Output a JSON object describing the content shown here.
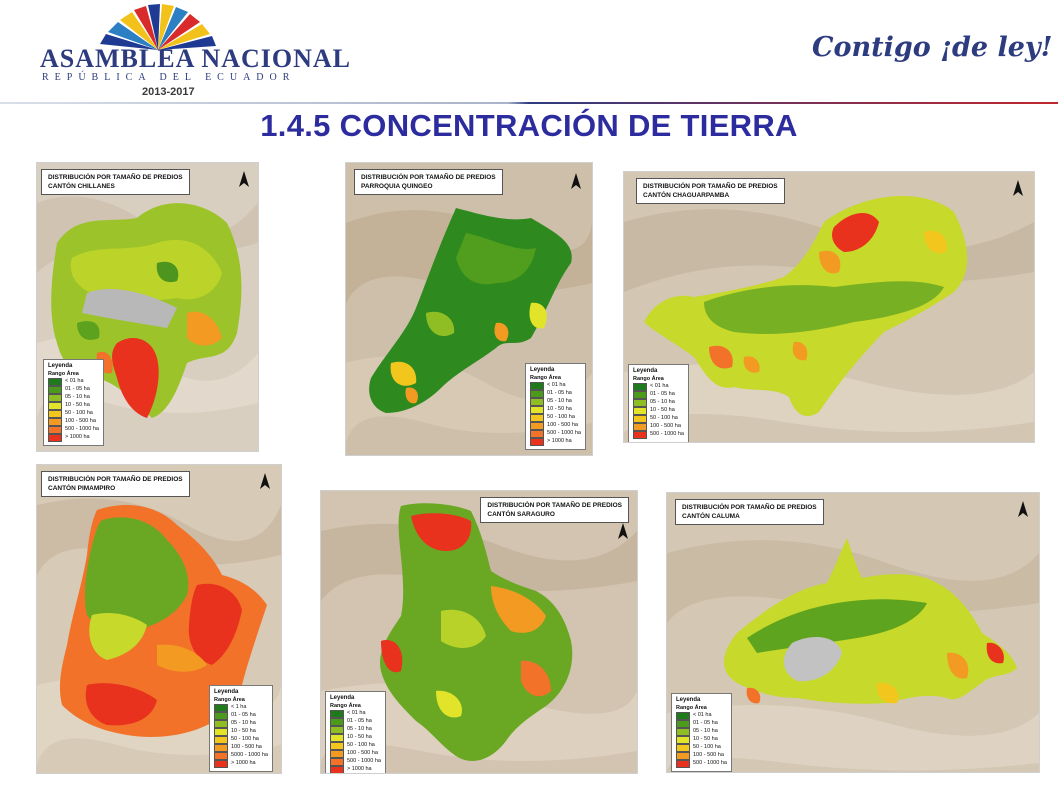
{
  "header": {
    "brand": "ASAMBLEA NACIONAL",
    "brand_sub": "REPÚBLICA DEL ECUADOR",
    "period": "2013-2017",
    "slogan": "Contigo ¡de ley!"
  },
  "title": "1.4.5 CONCENTRACIÓN DE TIERRA",
  "colors": {
    "c1": "#1e7a1a",
    "c2": "#4c9a1c",
    "c3": "#8fbe24",
    "c4": "#e2e42a",
    "c5": "#f3c61e",
    "c6": "#f39a22",
    "c7": "#f2722a",
    "c8": "#e8321e"
  },
  "maps": [
    {
      "title1": "DISTRIBUCIÓN POR TAMAÑO DE PREDIOS",
      "title2": "CANTÓN CHILLANES",
      "legend_title": "Leyenda",
      "legend_sub": "Rango Área",
      "legend": [
        "< 01 ha",
        "01 - 05 ha",
        "05 - 10 ha",
        "10 - 50 ha",
        "50 - 100 ha",
        "100 - 500 ha",
        "500 - 1000 ha",
        "> 1000 ha"
      ]
    },
    {
      "title1": "DISTRIBUCIÓN POR TAMAÑO DE PREDIOS",
      "title2": "PARROQUIA QUINGEO",
      "legend_title": "Leyenda",
      "legend_sub": "Rango Área",
      "legend": [
        "< 01 ha",
        "01 - 05 ha",
        "05 - 10 ha",
        "10 - 50 ha",
        "50 - 100 ha",
        "100 - 500 ha",
        "500 - 1000 ha",
        "> 1000 ha"
      ]
    },
    {
      "title1": "DISTRIBUCIÓN POR TAMAÑO DE PREDIOS",
      "title2": "CANTÓN CHAGUARPAMBA",
      "legend_title": "Leyenda",
      "legend_sub": "Rango Área",
      "legend": [
        "< 01 ha",
        "01 - 05 ha",
        "05 - 10 ha",
        "10 - 50 ha",
        "50 - 100 ha",
        "100 - 500 ha",
        "500 - 1000 ha"
      ]
    },
    {
      "title1": "DISTRIBUCIÓN POR TAMAÑO DE PREDIOS",
      "title2": "CANTÓN PIMAMPIRO",
      "legend_title": "Leyenda",
      "legend_sub": "Rango Área",
      "legend": [
        "< 1 ha",
        "01 - 05 ha",
        "05 - 10 ha",
        "10 - 50 ha",
        "50 - 100 ha",
        "100 - 500 ha",
        "5000 - 1000 ha",
        "> 1000 ha"
      ]
    },
    {
      "title1": "DISTRIBUCIÓN POR TAMAÑO DE PREDIOS",
      "title2": "CANTÓN SARAGURO",
      "legend_title": "Leyenda",
      "legend_sub": "Rango Área",
      "legend": [
        "< 01 ha",
        "01 - 05 ha",
        "05 - 10 ha",
        "10 - 50 ha",
        "50 - 100 ha",
        "100 - 500 ha",
        "500 - 1000 ha",
        "> 1000 ha"
      ]
    },
    {
      "title1": "DISTRIBUCIÓN POR TAMAÑO DE PREDIOS",
      "title2": "CANTÓN CALUMA",
      "legend_title": "Leyenda",
      "legend_sub": "Rango Área",
      "legend": [
        "< 01 ha",
        "01 - 05 ha",
        "05 - 10 ha",
        "10 - 50 ha",
        "50 - 100 ha",
        "100 - 500 ha",
        "500 - 1000 ha"
      ]
    }
  ]
}
